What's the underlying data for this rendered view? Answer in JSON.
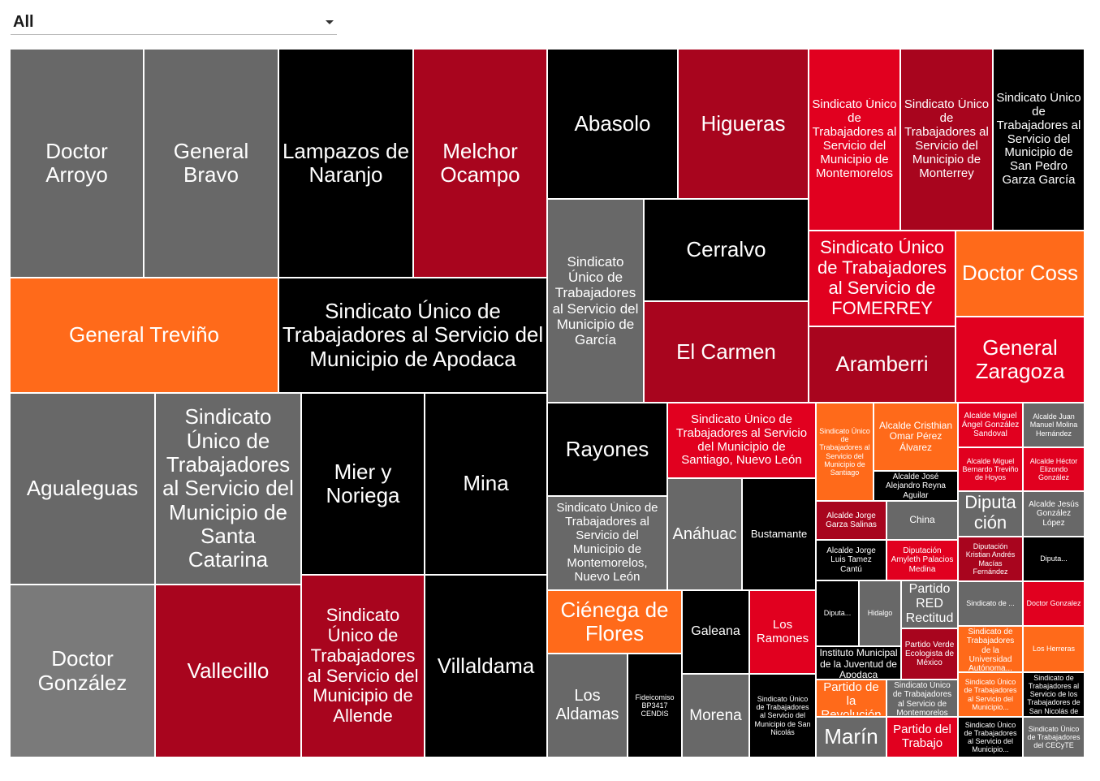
{
  "filter": {
    "selected": "All"
  },
  "colors": {
    "gray": "#686868",
    "lightgray": "#7a7a7a",
    "black": "#000000",
    "darkred": "#a8051e",
    "red": "#e1001f",
    "orange": "#ff6a1a"
  },
  "chart_data": {
    "type": "treemap",
    "items": [
      {
        "label": "Doctor Arroyo",
        "color": "gray"
      },
      {
        "label": "General Bravo",
        "color": "gray"
      },
      {
        "label": "Lampazos de Naranjo",
        "color": "black"
      },
      {
        "label": "Melchor Ocampo",
        "color": "darkred"
      },
      {
        "label": "General Treviño",
        "color": "orange"
      },
      {
        "label": "Sindicato Único de Trabajadores al Servicio del Municipio de Apodaca",
        "color": "black"
      },
      {
        "label": "Agualeguas",
        "color": "gray"
      },
      {
        "label": "Sindicato Único de Trabajadores al Servicio del Municipio de Santa Catarina",
        "color": "gray"
      },
      {
        "label": "Mier y Noriega",
        "color": "black"
      },
      {
        "label": "Mina",
        "color": "black"
      },
      {
        "label": "Doctor González",
        "color": "lightgray"
      },
      {
        "label": "Vallecillo",
        "color": "darkred"
      },
      {
        "label": "Sindicato Único de Trabajadores al Servicio del Municipio de Allende",
        "color": "darkred"
      },
      {
        "label": "Villaldama",
        "color": "black"
      },
      {
        "label": "Abasolo",
        "color": "black"
      },
      {
        "label": "Higueras",
        "color": "darkred"
      },
      {
        "label": "Sindicato Único de Trabajadores al Servicio del Municipio de Montemorelos",
        "color": "red"
      },
      {
        "label": "Sindicato Único de Trabajadores al Servicio del Municipio de Monterrey",
        "color": "darkred"
      },
      {
        "label": "Sindicato Único de Trabajadores al Servicio del Municipio de San Pedro Garza García",
        "color": "black"
      },
      {
        "label": "Sindicato Único de Trabajadores al Servicio del Municipio de García",
        "color": "gray"
      },
      {
        "label": "Cerralvo",
        "color": "black"
      },
      {
        "label": "Sindicato Único de Trabajadores al Servicio de FOMERREY",
        "color": "red"
      },
      {
        "label": "Doctor Coss",
        "color": "orange"
      },
      {
        "label": "El Carmen",
        "color": "darkred"
      },
      {
        "label": "Aramberri",
        "color": "darkred"
      },
      {
        "label": "General Zaragoza",
        "color": "red"
      },
      {
        "label": "Rayones",
        "color": "black"
      },
      {
        "label": "Sindicato Único de Trabajadores al Servicio del Municipio de Santiago, Nuevo León",
        "color": "red"
      },
      {
        "label": "Sindicato Único de Trabajadores al Servicio del Municipio de Montemorelos, Nuevo León",
        "color": "gray"
      },
      {
        "label": "Anáhuac",
        "color": "gray"
      },
      {
        "label": "Bustamante",
        "color": "black"
      },
      {
        "label": "Ciénega de Flores",
        "color": "orange"
      },
      {
        "label": "Galeana",
        "color": "black"
      },
      {
        "label": "Los Ramones",
        "color": "red"
      },
      {
        "label": "Los Aldamas",
        "color": "gray"
      },
      {
        "label": "Fideicomiso BP3417 CENDIS",
        "color": "black"
      },
      {
        "label": "Morena",
        "color": "gray"
      },
      {
        "label": "Sindicato Único de Trabajadores al Servicio del Municipio de San Nicolás",
        "color": "black"
      },
      {
        "label": "Sindicato Único de Trabajadores al Servicio del Municipio de Santiago",
        "color": "orange"
      },
      {
        "label": "Alcalde Cristhian Omar Pérez Álvarez",
        "color": "orange"
      },
      {
        "label": "Alcalde José Alejandro Reyna Aguilar",
        "color": "black"
      },
      {
        "label": "Alcalde Miguel Ángel González Sandoval",
        "color": "red"
      },
      {
        "label": "Alcalde Juan Manuel Molina Hernández",
        "color": "gray"
      },
      {
        "label": "Alcalde Miguel Bernardo Treviño de Hoyos",
        "color": "red"
      },
      {
        "label": "Alcalde Héctor Elizondo González",
        "color": "red"
      },
      {
        "label": "Alcalde Jorge Garza Salinas",
        "color": "darkred"
      },
      {
        "label": "China",
        "color": "gray"
      },
      {
        "label": "Diputación Daniel Darío Pérez Cavazos",
        "color": "gray"
      },
      {
        "label": "Alcalde Jesús González López",
        "color": "gray"
      },
      {
        "label": "Alcalde Jorge Luis Tamez Cantú",
        "color": "black"
      },
      {
        "label": "Diputación Amyleth Palacios Medina",
        "color": "red"
      },
      {
        "label": "Diputación Kristian Andrés Macías Fernández",
        "color": "darkred"
      },
      {
        "label": "Diputa...",
        "color": "black"
      },
      {
        "label": "Diputa...",
        "color": "black"
      },
      {
        "label": "Hidalgo",
        "color": "gray"
      },
      {
        "label": "Partido RED Rectitud, Esperanza Demócrata",
        "color": "gray"
      },
      {
        "label": "Sindicato de ...",
        "color": "gray"
      },
      {
        "label": "Doctor Gonzalez",
        "color": "red"
      },
      {
        "label": "Instituto Municipal de la Juventud de Apodaca",
        "color": "black"
      },
      {
        "label": "Partido Verde Ecologista de México",
        "color": "darkred"
      },
      {
        "label": "Sindicato de Trabajadores de la Universidad Autónoma...",
        "color": "orange"
      },
      {
        "label": "Los Herreras",
        "color": "orange"
      },
      {
        "label": "Partido de la Revolución Democrática",
        "color": "orange"
      },
      {
        "label": "Sindicato Único de Trabajadores al Servicio de Montemorelos",
        "color": "gray"
      },
      {
        "label": "Sindicato Único de Trabajadores al Servicio del Municipio...",
        "color": "orange"
      },
      {
        "label": "Sindicato de Trabajadores al Servicio de los Trabajadores de San Nicolás de los Garza y órganos descentralizados del Municipio...",
        "color": "black"
      },
      {
        "label": "Marín",
        "color": "gray"
      },
      {
        "label": "Partido del Trabajo",
        "color": "red"
      },
      {
        "label": "Sindicato Único de Trabajadores al Servicio del Municipio...",
        "color": "black"
      },
      {
        "label": "Sindicato Único de Trabajadores del CECyTE",
        "color": "gray"
      }
    ]
  }
}
